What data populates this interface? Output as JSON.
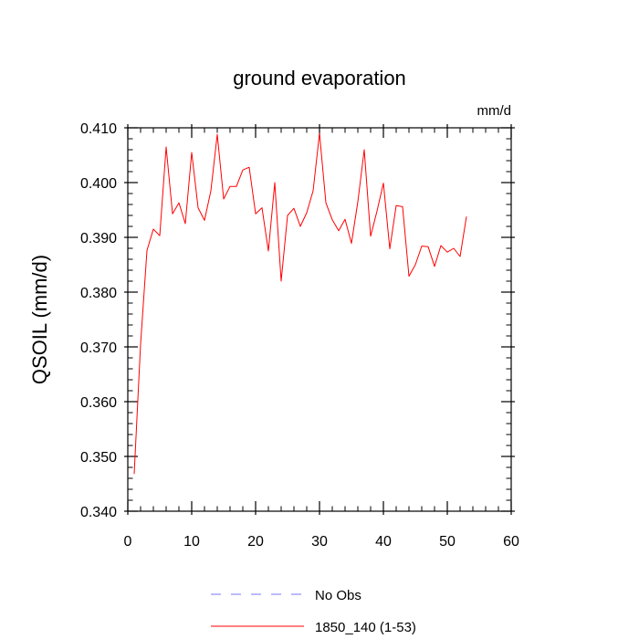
{
  "chart_data": {
    "type": "line",
    "title": "ground evaporation",
    "units_label": "mm/d",
    "ylabel": "QSOIL  (mm/d)",
    "xlabel": "",
    "xlim": [
      0,
      60
    ],
    "ylim": [
      0.34,
      0.41
    ],
    "x_ticks": [
      0,
      10,
      20,
      30,
      40,
      50,
      60
    ],
    "x_tick_labels": [
      "0",
      "10",
      "20",
      "30",
      "40",
      "50",
      "60"
    ],
    "y_ticks": [
      0.34,
      0.35,
      0.36,
      0.37,
      0.38,
      0.39,
      0.4,
      0.41
    ],
    "y_tick_labels": [
      "0.340",
      "0.350",
      "0.360",
      "0.370",
      "0.380",
      "0.390",
      "0.400",
      "0.410"
    ],
    "series": [
      {
        "name": "1850_140 (1-53)",
        "color": "#ff0000",
        "x": [
          1,
          2,
          3,
          4,
          5,
          6,
          7,
          8,
          9,
          10,
          11,
          12,
          13,
          14,
          15,
          16,
          17,
          18,
          19,
          20,
          21,
          22,
          23,
          24,
          25,
          26,
          27,
          28,
          29,
          30,
          31,
          32,
          33,
          34,
          35,
          36,
          37,
          38,
          39,
          40,
          41,
          42,
          43,
          44,
          45,
          46,
          47,
          48,
          49,
          50,
          51,
          52,
          53
        ],
        "values": [
          0.3468,
          0.3705,
          0.3876,
          0.3915,
          0.3903,
          0.4065,
          0.3943,
          0.3963,
          0.3925,
          0.4055,
          0.3954,
          0.3931,
          0.3985,
          0.4088,
          0.397,
          0.3993,
          0.3993,
          0.4023,
          0.4028,
          0.3943,
          0.3954,
          0.3875,
          0.4,
          0.382,
          0.394,
          0.3953,
          0.392,
          0.3945,
          0.3985,
          0.409,
          0.3963,
          0.3932,
          0.3912,
          0.3933,
          0.3889,
          0.3965,
          0.406,
          0.3902,
          0.3948,
          0.3999,
          0.3879,
          0.3958,
          0.3956,
          0.3829,
          0.385,
          0.3884,
          0.3883,
          0.3847,
          0.3885,
          0.3873,
          0.388,
          0.3865,
          0.3938
        ]
      }
    ],
    "legend": [
      {
        "label": "No Obs",
        "color": "#7777ff",
        "style": "dashed"
      },
      {
        "label": "1850_140 (1-53)",
        "color": "#ff0000",
        "style": "solid"
      }
    ]
  }
}
